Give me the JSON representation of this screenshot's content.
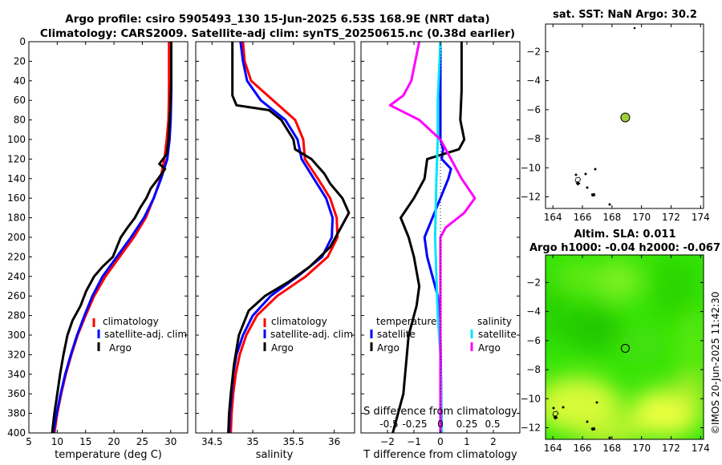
{
  "title": {
    "line1": "Argo profile: csiro 5905493_130 15-Jun-2025 6.53S 168.9E (NRT data)",
    "line2": "Climatology: CARS2009. Satellite-adj clim: synTS_20250615.nc (0.38d earlier)"
  },
  "watermark": "©IMOS 20-Jun-2025 11:42:30",
  "colors": {
    "climatology": "#ff0000",
    "satellite_adj": "#0000ff",
    "argo": "#000000",
    "salinity_satellite": "#00e5ff",
    "salinity_argo": "#ff00ff",
    "map_marker": "#9ed03c",
    "frame": "#000000"
  },
  "chart_data": [
    {
      "id": "temperature",
      "type": "line",
      "xlabel": "temperature (deg C)",
      "ylabel": "",
      "xlim": [
        5,
        33
      ],
      "ylim": [
        400,
        0
      ],
      "xticks": [
        5,
        10,
        15,
        20,
        25,
        30
      ],
      "yticks": [
        0,
        20,
        40,
        60,
        80,
        100,
        120,
        140,
        160,
        180,
        200,
        220,
        240,
        260,
        280,
        300,
        320,
        340,
        360,
        380,
        400
      ],
      "legend": [
        "climatology",
        "satellite-adj. clim",
        "Argo"
      ],
      "series": [
        {
          "name": "climatology",
          "color": "#ff0000",
          "points": [
            [
              29.7,
              0
            ],
            [
              29.7,
              50
            ],
            [
              29.6,
              80
            ],
            [
              29.3,
              100
            ],
            [
              28.9,
              120
            ],
            [
              28.2,
              140
            ],
            [
              27,
              160
            ],
            [
              25.6,
              180
            ],
            [
              23.5,
              200
            ],
            [
              21,
              220
            ],
            [
              18.5,
              240
            ],
            [
              16.5,
              260
            ],
            [
              15,
              280
            ],
            [
              13.6,
              300
            ],
            [
              12.5,
              320
            ],
            [
              11.5,
              340
            ],
            [
              10.7,
              360
            ],
            [
              10,
              380
            ],
            [
              9.5,
              400
            ]
          ]
        },
        {
          "name": "satellite-adj. clim",
          "color": "#0000ff",
          "points": [
            [
              30.1,
              0
            ],
            [
              30.1,
              50
            ],
            [
              30,
              80
            ],
            [
              29.8,
              100
            ],
            [
              29.4,
              120
            ],
            [
              28.3,
              140
            ],
            [
              27,
              160
            ],
            [
              25.3,
              180
            ],
            [
              23,
              200
            ],
            [
              20.5,
              220
            ],
            [
              18,
              240
            ],
            [
              16.2,
              260
            ],
            [
              14.8,
              280
            ],
            [
              13.5,
              300
            ],
            [
              12.4,
              320
            ],
            [
              11.4,
              340
            ],
            [
              10.6,
              360
            ],
            [
              9.9,
              380
            ],
            [
              9.3,
              400
            ]
          ]
        },
        {
          "name": "Argo",
          "color": "#000000",
          "points": [
            [
              30.1,
              0
            ],
            [
              30.1,
              40
            ],
            [
              29.9,
              70
            ],
            [
              29.6,
              100
            ],
            [
              29.3,
              115
            ],
            [
              28,
              125
            ],
            [
              29,
              130
            ],
            [
              27.8,
              140
            ],
            [
              26.5,
              150
            ],
            [
              25.7,
              160
            ],
            [
              24.6,
              170
            ],
            [
              23.7,
              180
            ],
            [
              22.4,
              190
            ],
            [
              21.2,
              200
            ],
            [
              20.5,
              210
            ],
            [
              19.8,
              220
            ],
            [
              18,
              230
            ],
            [
              16.5,
              240
            ],
            [
              15.1,
              255
            ],
            [
              14.1,
              270
            ],
            [
              12.7,
              285
            ],
            [
              11.8,
              300
            ],
            [
              11.1,
              320
            ],
            [
              10.5,
              340
            ],
            [
              10,
              360
            ],
            [
              9.5,
              380
            ],
            [
              9.1,
              400
            ]
          ]
        }
      ]
    },
    {
      "id": "salinity",
      "type": "line",
      "xlabel": "salinity",
      "ylabel": "",
      "xlim": [
        34.3,
        36.25
      ],
      "ylim": [
        400,
        0
      ],
      "xticks": [
        34.5,
        35,
        35.5,
        36
      ],
      "legend": [
        "climatology",
        "satellite-adj. clim",
        "Argo"
      ],
      "series": [
        {
          "name": "climatology",
          "color": "#ff0000",
          "points": [
            [
              34.88,
              0
            ],
            [
              34.9,
              20
            ],
            [
              34.98,
              40
            ],
            [
              35.25,
              60
            ],
            [
              35.52,
              80
            ],
            [
              35.62,
              100
            ],
            [
              35.64,
              120
            ],
            [
              35.8,
              140
            ],
            [
              35.95,
              160
            ],
            [
              36.03,
              180
            ],
            [
              36.04,
              200
            ],
            [
              35.92,
              220
            ],
            [
              35.65,
              240
            ],
            [
              35.3,
              260
            ],
            [
              35.05,
              280
            ],
            [
              34.92,
              300
            ],
            [
              34.84,
              320
            ],
            [
              34.79,
              340
            ],
            [
              34.76,
              360
            ],
            [
              34.74,
              380
            ],
            [
              34.73,
              400
            ]
          ]
        },
        {
          "name": "satellite-adj. clim",
          "color": "#0000ff",
          "points": [
            [
              34.85,
              0
            ],
            [
              34.88,
              20
            ],
            [
              34.93,
              40
            ],
            [
              35.1,
              60
            ],
            [
              35.4,
              80
            ],
            [
              35.55,
              100
            ],
            [
              35.6,
              120
            ],
            [
              35.75,
              140
            ],
            [
              35.9,
              160
            ],
            [
              35.98,
              180
            ],
            [
              35.97,
              200
            ],
            [
              35.85,
              220
            ],
            [
              35.55,
              240
            ],
            [
              35.22,
              260
            ],
            [
              35,
              280
            ],
            [
              34.88,
              300
            ],
            [
              34.8,
              320
            ],
            [
              34.76,
              340
            ],
            [
              34.74,
              360
            ],
            [
              34.72,
              380
            ],
            [
              34.71,
              400
            ]
          ]
        },
        {
          "name": "Argo",
          "color": "#000000",
          "points": [
            [
              34.75,
              0
            ],
            [
              34.75,
              55
            ],
            [
              34.8,
              65
            ],
            [
              35.2,
              70
            ],
            [
              35.35,
              80
            ],
            [
              35.5,
              100
            ],
            [
              35.52,
              110
            ],
            [
              35.72,
              120
            ],
            [
              35.88,
              135
            ],
            [
              35.95,
              145
            ],
            [
              36.1,
              160
            ],
            [
              36.18,
              175
            ],
            [
              36.05,
              195
            ],
            [
              35.95,
              210
            ],
            [
              35.7,
              230
            ],
            [
              35.45,
              245
            ],
            [
              35.15,
              260
            ],
            [
              34.95,
              275
            ],
            [
              34.83,
              300
            ],
            [
              34.77,
              330
            ],
            [
              34.73,
              360
            ],
            [
              34.71,
              380
            ],
            [
              34.7,
              400
            ]
          ]
        }
      ]
    },
    {
      "id": "difference",
      "type": "line",
      "xlabel": "T difference from climatology",
      "top_label": "S difference from climatology",
      "xlim": [
        -3,
        3
      ],
      "xticks": [
        -2,
        -1,
        0,
        1,
        2
      ],
      "s_xticks": [
        "-0.5",
        "-0.25",
        "0",
        "0.25",
        "0.5"
      ],
      "ylim": [
        400,
        0
      ],
      "legend_left": {
        "header": "temperature",
        "items": [
          "satellite",
          "Argo"
        ]
      },
      "legend_right": {
        "header": "salinity",
        "items": [
          "satellite",
          "Argo"
        ]
      },
      "series": [
        {
          "name": "temperature satellite",
          "color": "#0000ff",
          "points": [
            [
              0,
              0
            ],
            [
              0,
              100
            ],
            [
              0.1,
              110
            ],
            [
              0.05,
              120
            ],
            [
              0.4,
              130
            ],
            [
              0.3,
              140
            ],
            [
              0,
              160
            ],
            [
              -0.3,
              180
            ],
            [
              -0.6,
              200
            ],
            [
              -0.5,
              220
            ],
            [
              -0.3,
              240
            ],
            [
              -0.1,
              260
            ],
            [
              0,
              300
            ],
            [
              0.05,
              400
            ]
          ]
        },
        {
          "name": "temperature Argo",
          "color": "#000000",
          "points": [
            [
              0.8,
              0
            ],
            [
              0.8,
              50
            ],
            [
              0.75,
              80
            ],
            [
              0.9,
              100
            ],
            [
              0.7,
              110
            ],
            [
              -0.5,
              120
            ],
            [
              -0.6,
              140
            ],
            [
              -1,
              160
            ],
            [
              -1.5,
              180
            ],
            [
              -1.2,
              200
            ],
            [
              -1,
              220
            ],
            [
              -0.8,
              250
            ],
            [
              -0.9,
              270
            ],
            [
              -1.2,
              300
            ],
            [
              -1.3,
              330
            ],
            [
              -1.4,
              360
            ],
            [
              -1.6,
              380
            ],
            [
              -1.8,
              400
            ]
          ]
        },
        {
          "name": "salinity satellite",
          "color": "#00e5ff",
          "points": [
            [
              0,
              0
            ],
            [
              -0.1,
              60
            ],
            [
              -0.1,
              100
            ],
            [
              -0.15,
              140
            ],
            [
              -0.2,
              200
            ],
            [
              -0.15,
              240
            ],
            [
              -0.1,
              280
            ],
            [
              0,
              320
            ],
            [
              0.05,
              400
            ]
          ]
        },
        {
          "name": "salinity Argo",
          "color": "#ff00ff",
          "points": [
            [
              -0.8,
              0
            ],
            [
              -1.1,
              40
            ],
            [
              -1.4,
              55
            ],
            [
              -1.9,
              65
            ],
            [
              -0.8,
              80
            ],
            [
              0,
              100
            ],
            [
              0.5,
              125
            ],
            [
              0.8,
              140
            ],
            [
              1.3,
              160
            ],
            [
              0.9,
              175
            ],
            [
              0.2,
              190
            ],
            [
              0,
              200
            ],
            [
              0,
              400
            ]
          ]
        }
      ]
    },
    {
      "id": "sst_map",
      "type": "scatter",
      "title": "sat. SST: NaN Argo: 30.2",
      "xlim": [
        163.5,
        174.2
      ],
      "ylim": [
        -12.8,
        -0.1
      ],
      "xticks": [
        164,
        166,
        168,
        170,
        172,
        174
      ],
      "yticks": [
        -2,
        -4,
        -6,
        -8,
        -10,
        -12
      ],
      "argo_position": [
        168.9,
        -6.53
      ],
      "argo_marker_color": "#9ed03c"
    },
    {
      "id": "sla_map",
      "type": "heatmap",
      "title1": "Altim. SLA: 0.011",
      "title2": "Argo h1000: -0.04 h2000: -0.067",
      "xlim": [
        163.5,
        174.2
      ],
      "ylim": [
        -12.8,
        -0.1
      ],
      "xticks": [
        164,
        166,
        168,
        170,
        172,
        174
      ],
      "yticks": [
        -2,
        -4,
        -6,
        -8,
        -10,
        -12
      ],
      "argo_position": [
        168.9,
        -6.53
      ],
      "colormap_low": "#28e000",
      "colormap_high": "#e6ff3c"
    }
  ]
}
